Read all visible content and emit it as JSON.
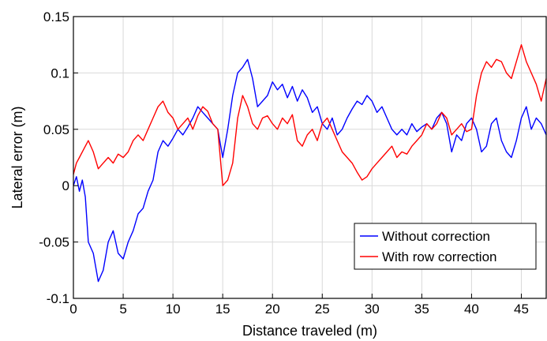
{
  "chart_data": {
    "type": "line",
    "title": "",
    "xlabel": "Distance traveled (m)",
    "ylabel": "Lateral error (m)",
    "xlim": [
      0,
      47.5
    ],
    "ylim": [
      -0.1,
      0.15
    ],
    "x_ticks": [
      0,
      5,
      10,
      15,
      20,
      25,
      30,
      35,
      40,
      45
    ],
    "y_ticks": [
      -0.1,
      -0.05,
      0,
      0.05,
      0.1,
      0.15
    ],
    "x_tick_labels": [
      "0",
      "5",
      "10",
      "15",
      "20",
      "25",
      "30",
      "35",
      "40",
      "45"
    ],
    "y_tick_labels": [
      "-0.1",
      "-0.05",
      "0",
      "0.05",
      "0.1",
      "0.15"
    ],
    "grid": true,
    "legend_position": "bottom-right",
    "series": [
      {
        "name": "Without correction",
        "color": "#0000ff",
        "x": [
          0,
          0.3,
          0.6,
          0.9,
          1.2,
          1.5,
          2.0,
          2.5,
          3.0,
          3.5,
          4.0,
          4.5,
          5.0,
          5.5,
          6.0,
          6.5,
          7.0,
          7.5,
          8.0,
          8.5,
          9.0,
          9.5,
          10.0,
          10.5,
          11.0,
          11.5,
          12.0,
          12.5,
          13.0,
          13.5,
          14.0,
          14.5,
          15.0,
          15.5,
          16.0,
          16.5,
          17.0,
          17.5,
          18.0,
          18.5,
          19.0,
          19.5,
          20.0,
          20.5,
          21.0,
          21.5,
          22.0,
          22.5,
          23.0,
          23.5,
          24.0,
          24.5,
          25.0,
          25.5,
          26.0,
          26.5,
          27.0,
          27.5,
          28.0,
          28.5,
          29.0,
          29.5,
          30.0,
          30.5,
          31.0,
          31.5,
          32.0,
          32.5,
          33.0,
          33.5,
          34.0,
          34.5,
          35.0,
          35.5,
          36.0,
          36.5,
          37.0,
          37.5,
          38.0,
          38.5,
          39.0,
          39.5,
          40.0,
          40.5,
          41.0,
          41.5,
          42.0,
          42.5,
          43.0,
          43.5,
          44.0,
          44.5,
          45.0,
          45.5,
          46.0,
          46.5,
          47.0,
          47.5
        ],
        "values": [
          0.0,
          0.008,
          -0.005,
          0.005,
          -0.01,
          -0.05,
          -0.06,
          -0.085,
          -0.075,
          -0.05,
          -0.04,
          -0.06,
          -0.065,
          -0.05,
          -0.04,
          -0.025,
          -0.02,
          -0.005,
          0.005,
          0.03,
          0.04,
          0.035,
          0.042,
          0.05,
          0.045,
          0.052,
          0.06,
          0.07,
          0.065,
          0.06,
          0.055,
          0.05,
          0.025,
          0.05,
          0.08,
          0.1,
          0.105,
          0.112,
          0.095,
          0.07,
          0.075,
          0.08,
          0.092,
          0.085,
          0.09,
          0.078,
          0.088,
          0.075,
          0.085,
          0.078,
          0.065,
          0.07,
          0.055,
          0.05,
          0.06,
          0.045,
          0.05,
          0.06,
          0.068,
          0.075,
          0.072,
          0.08,
          0.075,
          0.065,
          0.07,
          0.06,
          0.05,
          0.045,
          0.05,
          0.045,
          0.055,
          0.048,
          0.052,
          0.055,
          0.05,
          0.06,
          0.065,
          0.055,
          0.03,
          0.045,
          0.04,
          0.055,
          0.06,
          0.05,
          0.03,
          0.035,
          0.055,
          0.06,
          0.04,
          0.03,
          0.025,
          0.04,
          0.06,
          0.07,
          0.05,
          0.06,
          0.055,
          0.045
        ]
      },
      {
        "name": "With row correction",
        "color": "#ff0000",
        "x": [
          0,
          0.3,
          0.6,
          0.9,
          1.2,
          1.5,
          2.0,
          2.5,
          3.0,
          3.5,
          4.0,
          4.5,
          5.0,
          5.5,
          6.0,
          6.5,
          7.0,
          7.5,
          8.0,
          8.5,
          9.0,
          9.5,
          10.0,
          10.5,
          11.0,
          11.5,
          12.0,
          12.5,
          13.0,
          13.5,
          14.0,
          14.5,
          15.0,
          15.5,
          16.0,
          16.5,
          17.0,
          17.5,
          18.0,
          18.5,
          19.0,
          19.5,
          20.0,
          20.5,
          21.0,
          21.5,
          22.0,
          22.5,
          23.0,
          23.5,
          24.0,
          24.5,
          25.0,
          25.5,
          26.0,
          26.5,
          27.0,
          27.5,
          28.0,
          28.5,
          29.0,
          29.5,
          30.0,
          30.5,
          31.0,
          31.5,
          32.0,
          32.5,
          33.0,
          33.5,
          34.0,
          34.5,
          35.0,
          35.5,
          36.0,
          36.5,
          37.0,
          37.5,
          38.0,
          38.5,
          39.0,
          39.5,
          40.0,
          40.5,
          41.0,
          41.5,
          42.0,
          42.5,
          43.0,
          43.5,
          44.0,
          44.5,
          45.0,
          45.5,
          46.0,
          46.5,
          47.0,
          47.5
        ],
        "values": [
          0.01,
          0.02,
          0.025,
          0.03,
          0.035,
          0.04,
          0.03,
          0.015,
          0.02,
          0.025,
          0.02,
          0.028,
          0.025,
          0.03,
          0.04,
          0.045,
          0.04,
          0.05,
          0.06,
          0.07,
          0.075,
          0.065,
          0.06,
          0.05,
          0.055,
          0.06,
          0.05,
          0.062,
          0.07,
          0.066,
          0.055,
          0.05,
          0.0,
          0.005,
          0.02,
          0.06,
          0.08,
          0.07,
          0.055,
          0.05,
          0.06,
          0.062,
          0.055,
          0.05,
          0.06,
          0.055,
          0.063,
          0.04,
          0.035,
          0.045,
          0.05,
          0.04,
          0.055,
          0.06,
          0.05,
          0.04,
          0.03,
          0.025,
          0.02,
          0.012,
          0.005,
          0.008,
          0.015,
          0.02,
          0.025,
          0.03,
          0.035,
          0.025,
          0.03,
          0.028,
          0.035,
          0.04,
          0.045,
          0.055,
          0.05,
          0.055,
          0.065,
          0.06,
          0.045,
          0.05,
          0.055,
          0.048,
          0.05,
          0.08,
          0.1,
          0.11,
          0.105,
          0.112,
          0.11,
          0.1,
          0.095,
          0.11,
          0.125,
          0.11,
          0.1,
          0.09,
          0.075,
          0.095
        ]
      }
    ]
  }
}
